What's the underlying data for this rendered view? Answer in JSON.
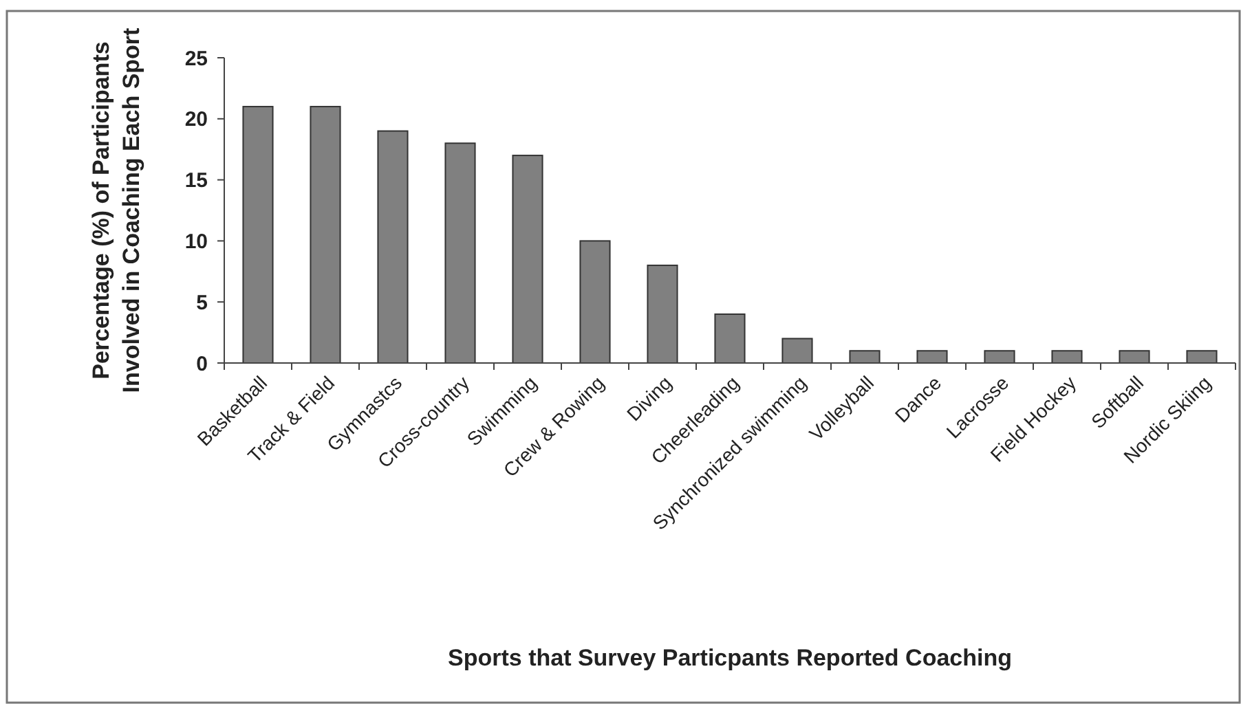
{
  "chart_data": {
    "type": "bar",
    "xlabel": "Sports that Survey Particpants Reported Coaching",
    "ylabel": "Percentage (%) of Participants\nInvolved in Coaching Each Sport",
    "categories": [
      "Basketball",
      "Track & Field",
      "Gymnastcs",
      "Cross-country",
      "Swimming",
      "Crew & Rowing",
      "Diving",
      "Cheerleading",
      "Synchronized swimming",
      "Volleyball",
      "Dance",
      "Lacrosse",
      "Field Hockey",
      "Softball",
      "Nordic Skiing"
    ],
    "values": [
      21,
      21,
      19,
      18,
      17,
      10,
      8,
      4,
      2,
      1,
      1,
      1,
      1,
      1,
      1
    ],
    "color": "#808080",
    "ylim": [
      0,
      25
    ],
    "yticks": [
      0,
      5,
      10,
      15,
      20,
      25
    ],
    "grid": false
  }
}
